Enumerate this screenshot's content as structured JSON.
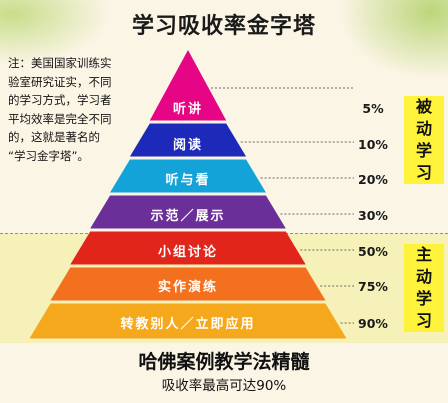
{
  "title": "学习吸收率金字塔",
  "note_lines": [
    "注：美国国家训练实",
    "验室研究证实，不同",
    "的学习方式，学习者",
    "平均效率是完全不同",
    "的，这就是著名的",
    "“学习金字塔”。"
  ],
  "layers": [
    {
      "label": "听讲",
      "percent": "5%",
      "color": "#e60585"
    },
    {
      "label": "阅读",
      "percent": "10%",
      "color": "#1d29b8"
    },
    {
      "label": "听与看",
      "percent": "20%",
      "color": "#14a3d9"
    },
    {
      "label": "示范／展示",
      "percent": "30%",
      "color": "#6b2f99"
    },
    {
      "label": "小组讨论",
      "percent": "50%",
      "color": "#e1251b"
    },
    {
      "label": "实作演练",
      "percent": "75%",
      "color": "#f3701e"
    },
    {
      "label": "转教别人／立即应用",
      "percent": "90%",
      "color": "#f5a81c"
    }
  ],
  "side_labels": {
    "passive": [
      "被",
      "动",
      "学",
      "习"
    ],
    "active": [
      "主",
      "动",
      "学",
      "习"
    ]
  },
  "bottom_title": "哈佛案例教学法精髓",
  "bottom_subtitle": "吸收率最高可达90%",
  "colors": {
    "background": "#fbf5e6",
    "active_band": "#f6f1b8",
    "side_label_bg": "#fff23a"
  }
}
